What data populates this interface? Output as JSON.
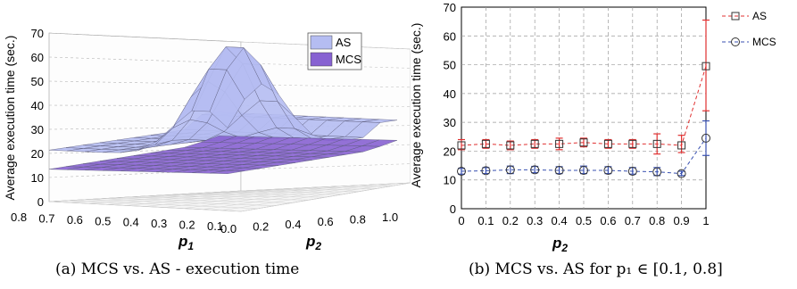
{
  "captions": {
    "a": "(a) MCS vs. AS - execution time",
    "b": "(b) MCS vs. AS for p₁ ∈ [0.1, 0.8]"
  },
  "colors": {
    "as_surface": "#b5bdf2",
    "mcs_surface": "#8762d2",
    "as_line": "#e03030",
    "mcs_line": "#3850b0"
  },
  "chart_data": [
    {
      "type": "surface3d",
      "ylabel": "Average execution time (sec.)",
      "xlabel": "p",
      "xlabel_sub": "1",
      "zlabel": "p",
      "zlabel_sub": "2",
      "p1_ticks": [
        "0.8",
        "0.7",
        "0.6",
        "0.5",
        "0.4",
        "0.3",
        "0.2",
        "0.1"
      ],
      "p2_ticks": [
        "0.0",
        "0.2",
        "0.4",
        "0.6",
        "0.8",
        "1.0"
      ],
      "yticks": [
        "0",
        "10",
        "20",
        "30",
        "40",
        "50",
        "60",
        "70"
      ],
      "ylim": [
        0,
        70
      ],
      "legend_position": "top-right",
      "series": [
        {
          "name": "AS",
          "approx_values": "≈19–25 for most of the grid; peak ≈68 near p1≈0.1–0.2, p2≈0.1–0.4; ≈30 near p2≈1.0"
        },
        {
          "name": "MCS",
          "approx_values": "≈12–15 for most of the grid; ≈18–20 near p2≈1.0"
        }
      ]
    },
    {
      "type": "line",
      "xlabel": "p",
      "xlabel_sub": "2",
      "ylabel": "Average execution time (sec.)",
      "x": [
        0,
        0.1,
        0.2,
        0.3,
        0.4,
        0.5,
        0.6,
        0.7,
        0.8,
        0.9,
        1
      ],
      "x_ticks": [
        "0",
        "0.1",
        "0.2",
        "0.3",
        "0.4",
        "0.5",
        "0.6",
        "0.7",
        "0.8",
        "0.9",
        "1"
      ],
      "y_ticks": [
        "0",
        "10",
        "20",
        "30",
        "40",
        "50",
        "60",
        "70"
      ],
      "ylim": [
        0,
        70
      ],
      "xlim": [
        0,
        1
      ],
      "grid": true,
      "legend_position": "top-right, outside",
      "series": [
        {
          "name": "AS",
          "values": [
            22,
            22.5,
            22,
            22.5,
            22.5,
            23,
            22.5,
            22.5,
            22.5,
            22,
            49.5
          ],
          "err_low": [
            20.5,
            21,
            20.5,
            21,
            20.5,
            21.5,
            21,
            21,
            19,
            19.5,
            34
          ],
          "err_high": [
            24,
            24,
            23.5,
            24,
            24.5,
            24.5,
            24,
            24,
            26,
            25.5,
            65.5
          ]
        },
        {
          "name": "MCS",
          "values": [
            13,
            13.2,
            13.5,
            13.5,
            13.3,
            13.3,
            13.3,
            13,
            12.8,
            12.2,
            24.5
          ],
          "err_low": [
            12,
            12.2,
            12.2,
            12.5,
            12.2,
            12.2,
            12.2,
            12,
            11.5,
            11.5,
            18.5
          ],
          "err_high": [
            14,
            14.3,
            14.8,
            14.7,
            14.6,
            14.8,
            14.6,
            14.3,
            14.3,
            13,
            30.5
          ]
        }
      ]
    }
  ]
}
